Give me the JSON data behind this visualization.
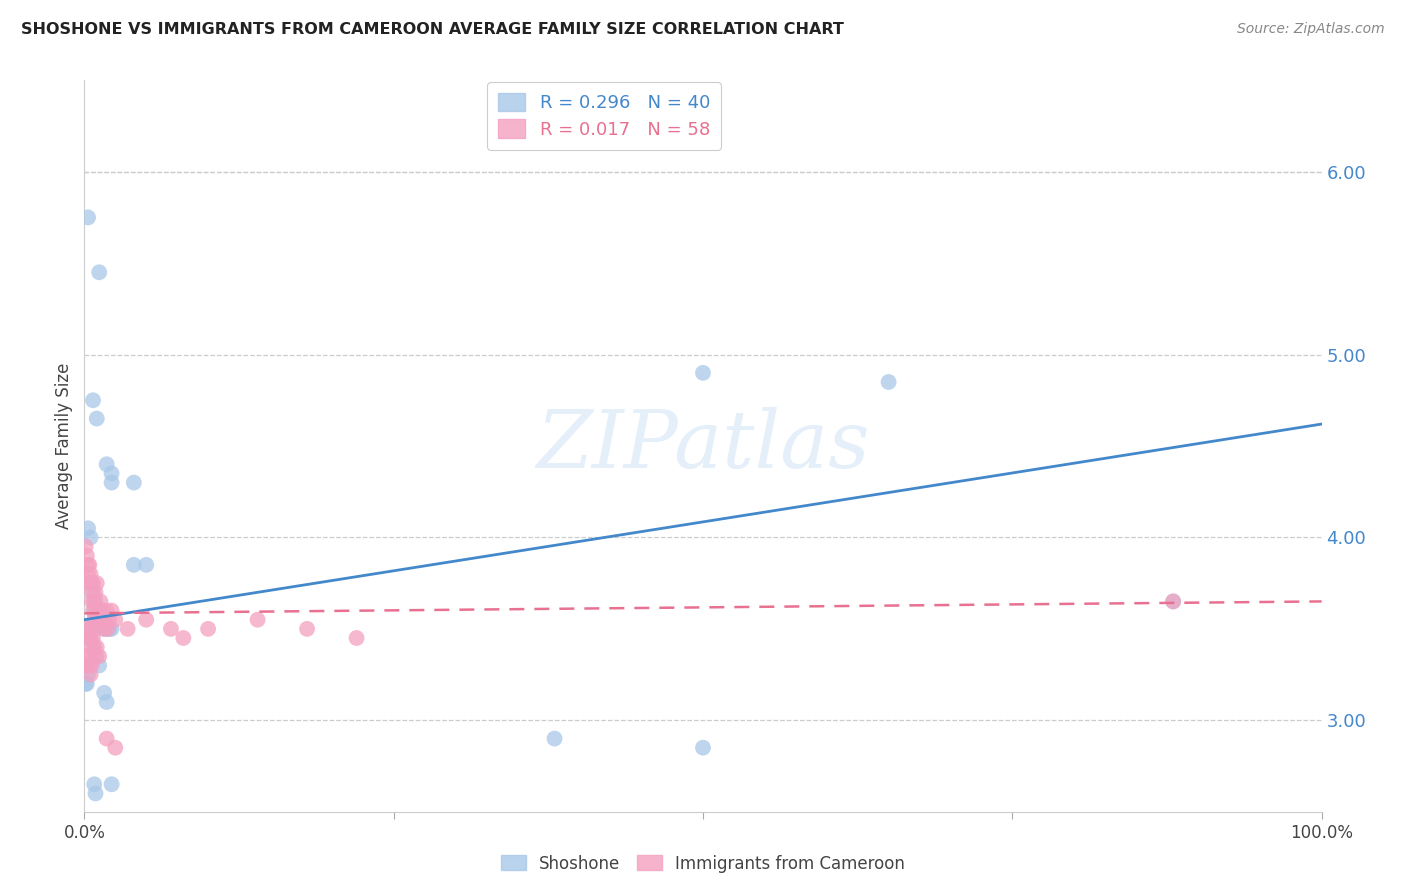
{
  "title": "SHOSHONE VS IMMIGRANTS FROM CAMEROON AVERAGE FAMILY SIZE CORRELATION CHART",
  "source": "Source: ZipAtlas.com",
  "ylabel": "Average Family Size",
  "right_yticks": [
    3.0,
    4.0,
    5.0,
    6.0
  ],
  "right_yticklabels": [
    "3.00",
    "4.00",
    "5.00",
    "6.00"
  ],
  "shoshone_color": "#a8c8e8",
  "cameroon_color": "#f4a0c0",
  "trend_shoshone_color": "#4488cc",
  "trend_cameroon_color": "#e87090",
  "watermark": "ZIPatlas",
  "xlim": [
    0.0,
    1.0
  ],
  "ylim": [
    2.5,
    6.5
  ],
  "background_color": "#ffffff",
  "grid_color": "#cccccc",
  "shoshone_points": [
    [
      0.003,
      5.75
    ],
    [
      0.012,
      5.45
    ],
    [
      0.007,
      4.75
    ],
    [
      0.01,
      4.65
    ],
    [
      0.018,
      4.4
    ],
    [
      0.022,
      4.35
    ],
    [
      0.022,
      4.3
    ],
    [
      0.04,
      3.85
    ],
    [
      0.05,
      3.85
    ],
    [
      0.04,
      4.3
    ],
    [
      0.003,
      4.05
    ],
    [
      0.005,
      4.0
    ],
    [
      0.007,
      3.7
    ],
    [
      0.008,
      3.65
    ],
    [
      0.008,
      3.6
    ],
    [
      0.009,
      3.65
    ],
    [
      0.01,
      3.6
    ],
    [
      0.012,
      3.6
    ],
    [
      0.013,
      3.55
    ],
    [
      0.015,
      3.55
    ],
    [
      0.016,
      3.5
    ],
    [
      0.018,
      3.5
    ],
    [
      0.02,
      3.5
    ],
    [
      0.022,
      3.5
    ],
    [
      0.003,
      3.5
    ],
    [
      0.004,
      3.5
    ],
    [
      0.002,
      3.45
    ],
    [
      0.003,
      3.45
    ],
    [
      0.005,
      3.45
    ],
    [
      0.008,
      3.4
    ],
    [
      0.01,
      3.35
    ],
    [
      0.012,
      3.3
    ],
    [
      0.002,
      3.3
    ],
    [
      0.003,
      3.25
    ],
    [
      0.001,
      3.2
    ],
    [
      0.002,
      3.2
    ],
    [
      0.016,
      3.15
    ],
    [
      0.018,
      3.1
    ],
    [
      0.008,
      2.65
    ],
    [
      0.009,
      2.6
    ],
    [
      0.022,
      2.65
    ],
    [
      0.5,
      4.9
    ],
    [
      0.65,
      4.85
    ],
    [
      0.88,
      3.65
    ],
    [
      0.38,
      2.9
    ],
    [
      0.5,
      2.85
    ]
  ],
  "cameroon_points": [
    [
      0.001,
      3.95
    ],
    [
      0.002,
      3.9
    ],
    [
      0.003,
      3.85
    ],
    [
      0.003,
      3.8
    ],
    [
      0.004,
      3.75
    ],
    [
      0.005,
      3.8
    ],
    [
      0.004,
      3.85
    ],
    [
      0.005,
      3.75
    ],
    [
      0.006,
      3.7
    ],
    [
      0.007,
      3.75
    ],
    [
      0.006,
      3.65
    ],
    [
      0.007,
      3.6
    ],
    [
      0.008,
      3.65
    ],
    [
      0.009,
      3.7
    ],
    [
      0.01,
      3.75
    ],
    [
      0.008,
      3.55
    ],
    [
      0.009,
      3.5
    ],
    [
      0.01,
      3.6
    ],
    [
      0.011,
      3.55
    ],
    [
      0.012,
      3.6
    ],
    [
      0.013,
      3.65
    ],
    [
      0.014,
      3.6
    ],
    [
      0.015,
      3.55
    ],
    [
      0.016,
      3.5
    ],
    [
      0.017,
      3.55
    ],
    [
      0.018,
      3.6
    ],
    [
      0.019,
      3.5
    ],
    [
      0.02,
      3.55
    ],
    [
      0.002,
      3.5
    ],
    [
      0.003,
      3.45
    ],
    [
      0.004,
      3.5
    ],
    [
      0.005,
      3.45
    ],
    [
      0.006,
      3.4
    ],
    [
      0.007,
      3.45
    ],
    [
      0.008,
      3.4
    ],
    [
      0.009,
      3.35
    ],
    [
      0.01,
      3.4
    ],
    [
      0.012,
      3.35
    ],
    [
      0.001,
      3.35
    ],
    [
      0.002,
      3.3
    ],
    [
      0.003,
      3.35
    ],
    [
      0.004,
      3.3
    ],
    [
      0.005,
      3.25
    ],
    [
      0.006,
      3.3
    ],
    [
      0.022,
      3.6
    ],
    [
      0.025,
      3.55
    ],
    [
      0.035,
      3.5
    ],
    [
      0.05,
      3.55
    ],
    [
      0.07,
      3.5
    ],
    [
      0.08,
      3.45
    ],
    [
      0.1,
      3.5
    ],
    [
      0.14,
      3.55
    ],
    [
      0.18,
      3.5
    ],
    [
      0.22,
      3.45
    ],
    [
      0.88,
      3.65
    ],
    [
      0.018,
      2.9
    ],
    [
      0.025,
      2.85
    ]
  ]
}
